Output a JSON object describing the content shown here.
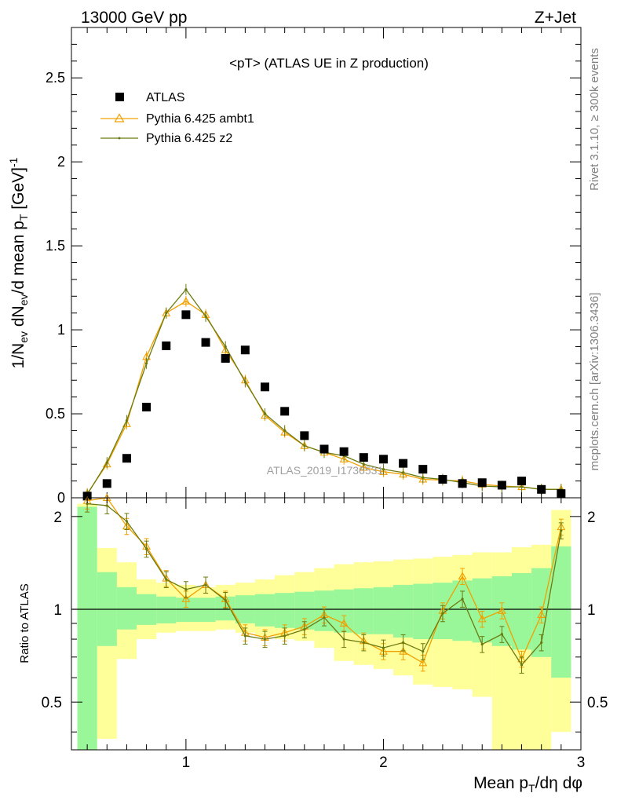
{
  "header": {
    "left": "13000 GeV pp",
    "right": "Z+Jet"
  },
  "side_labels": {
    "rivet": "Rivet 3.1.10, ≥ 300k events",
    "mcplots": "mcplots.cern.ch [arXiv:1306.3436]"
  },
  "watermark": "ATLAS_2019_I1736531",
  "colors": {
    "data": "#000000",
    "ambt1": "#f0a000",
    "z2": "#6b7a10",
    "band_inner": "#99f799",
    "band_outer": "#ffff99"
  },
  "chart_data": [
    {
      "type": "scatter",
      "panel": "main",
      "title": "<pT> (ATLAS UE in Z production)",
      "ylabel": "1/N_ev dN_ev/d mean p_T [GeV]^-1",
      "xlim": [
        0.42,
        3.0
      ],
      "ylim": [
        0,
        2.8
      ],
      "yticks": [
        0,
        0.5,
        1,
        1.5,
        2,
        2.5
      ],
      "ytick_labels": [
        "0",
        "0.5",
        "1",
        "1.5",
        "2",
        "2.5"
      ],
      "x": [
        0.5,
        0.6,
        0.7,
        0.8,
        0.9,
        1.0,
        1.1,
        1.2,
        1.3,
        1.4,
        1.5,
        1.6,
        1.7,
        1.8,
        1.9,
        2.0,
        2.1,
        2.2,
        2.3,
        2.4,
        2.5,
        2.6,
        2.7,
        2.8,
        2.9
      ],
      "legend_entries": [
        "ATLAS",
        "Pythia 6.425 ambt1",
        "Pythia 6.425 z2"
      ],
      "series": [
        {
          "name": "ATLAS",
          "marker": "square",
          "values": [
            0.01,
            0.085,
            0.235,
            0.54,
            0.905,
            1.09,
            0.925,
            0.83,
            0.88,
            0.66,
            0.515,
            0.37,
            0.29,
            0.275,
            0.24,
            0.23,
            0.205,
            0.17,
            0.11,
            0.085,
            0.09,
            0.075,
            0.1,
            0.05,
            0.025
          ]
        },
        {
          "name": "Pythia 6.425 ambt1",
          "marker": "triangle",
          "values": [
            0.025,
            0.2,
            0.44,
            0.84,
            1.1,
            1.17,
            1.09,
            0.88,
            0.7,
            0.49,
            0.39,
            0.31,
            0.27,
            0.23,
            0.18,
            0.155,
            0.14,
            0.11,
            0.105,
            0.1,
            0.08,
            0.07,
            0.065,
            0.05,
            0.05
          ]
        },
        {
          "name": "Pythia 6.425 z2",
          "marker": "dot",
          "values": [
            0.02,
            0.21,
            0.46,
            0.8,
            1.1,
            1.24,
            1.08,
            0.9,
            0.69,
            0.5,
            0.4,
            0.31,
            0.27,
            0.25,
            0.2,
            0.17,
            0.15,
            0.12,
            0.11,
            0.09,
            0.07,
            0.065,
            0.065,
            0.05,
            0.05
          ]
        }
      ]
    },
    {
      "type": "line",
      "panel": "ratio",
      "ylabel": "Ratio to ATLAS",
      "xlabel": "Mean p_T/dη dφ",
      "xlim": [
        0.42,
        3.0
      ],
      "ylim": [
        0.35,
        2.3
      ],
      "xticks": [
        1,
        2,
        3
      ],
      "xtick_labels": [
        "1",
        "2",
        "3"
      ],
      "yticks": [
        0.5,
        1,
        2
      ],
      "ytick_labels": [
        "0.5",
        "1",
        "2"
      ],
      "reference": 1.0,
      "x": [
        0.5,
        0.6,
        0.7,
        0.8,
        0.9,
        1.0,
        1.1,
        1.2,
        1.3,
        1.4,
        1.5,
        1.6,
        1.7,
        1.8,
        1.9,
        2.0,
        2.1,
        2.2,
        2.3,
        2.4,
        2.5,
        2.6,
        2.7,
        2.8,
        2.9
      ],
      "band_inner": {
        "lower": [
          0.35,
          0.76,
          0.86,
          0.89,
          0.9,
          0.91,
          0.91,
          0.92,
          0.9,
          0.88,
          0.87,
          0.86,
          0.85,
          0.84,
          0.83,
          0.83,
          0.81,
          0.8,
          0.8,
          0.79,
          0.78,
          0.76,
          0.74,
          0.7,
          0.6
        ],
        "upper": [
          2.15,
          1.32,
          1.18,
          1.12,
          1.1,
          1.09,
          1.09,
          1.1,
          1.11,
          1.12,
          1.13,
          1.14,
          1.15,
          1.16,
          1.17,
          1.18,
          1.2,
          1.21,
          1.22,
          1.24,
          1.26,
          1.28,
          1.31,
          1.36,
          1.6
        ]
      },
      "band_outer": {
        "lower": [
          0.35,
          0.38,
          0.69,
          0.8,
          0.84,
          0.85,
          0.85,
          0.86,
          0.84,
          0.82,
          0.8,
          0.79,
          0.75,
          0.68,
          0.66,
          0.64,
          0.61,
          0.57,
          0.56,
          0.55,
          0.52,
          0.35,
          0.35,
          0.35,
          0.4
        ],
        "upper": [
          2.2,
          1.58,
          1.42,
          1.25,
          1.22,
          1.2,
          1.18,
          1.2,
          1.22,
          1.25,
          1.29,
          1.32,
          1.36,
          1.4,
          1.42,
          1.43,
          1.45,
          1.46,
          1.48,
          1.5,
          1.53,
          1.53,
          1.59,
          1.62,
          2.1
        ]
      },
      "series": [
        {
          "name": "Pythia 6.425 ambt1",
          "values": [
            2.25,
            2.3,
            1.86,
            1.6,
            1.26,
            1.08,
            1.2,
            1.08,
            0.84,
            0.81,
            0.84,
            0.88,
            0.96,
            0.9,
            0.79,
            0.73,
            0.73,
            0.67,
            0.99,
            1.28,
            0.93,
            0.99,
            0.69,
            0.96,
            1.85
          ]
        },
        {
          "name": "Pythia 6.425 z2",
          "values": [
            2.2,
            2.17,
            1.93,
            1.57,
            1.25,
            1.16,
            1.2,
            1.07,
            0.82,
            0.8,
            0.82,
            0.86,
            0.94,
            0.8,
            0.78,
            0.75,
            0.78,
            0.73,
            0.97,
            1.08,
            0.77,
            0.83,
            0.66,
            0.78,
            1.8
          ]
        }
      ]
    }
  ]
}
